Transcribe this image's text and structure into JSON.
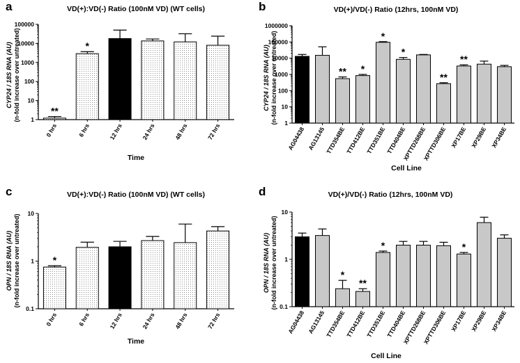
{
  "figure": {
    "width": 746,
    "height": 522
  },
  "chart_data": [
    {
      "type": "bar",
      "panel_letter": "a",
      "title": "VD(+):VD(-) Ratio (100nM VD) (WT cells)",
      "ylabel_line1": "CYP24 / 18S RNA (AU)",
      "ylabel_line2": "(n-fold increase over untreated)",
      "xlabel": "Time",
      "yscale": "log",
      "ylim": [
        1,
        100000
      ],
      "yticks": [
        1,
        10,
        100,
        1000,
        10000,
        100000
      ],
      "ytick_labels": [
        "1",
        "10",
        "100",
        "1000",
        "10000",
        "100000"
      ],
      "categories": [
        "0 hrs",
        "6 hrs",
        "12 hrs",
        "24 hrs",
        "48 hrs",
        "72 hrs"
      ],
      "values": [
        1.2,
        2900,
        18000,
        13500,
        12000,
        8000
      ],
      "errors": [
        1.45,
        3700,
        50000,
        17000,
        32000,
        24000
      ],
      "fills": [
        "dots",
        "dots",
        "black",
        "dots",
        "dots",
        "dots"
      ],
      "annotations": [
        "**",
        "*",
        "",
        "",
        "",
        ""
      ]
    },
    {
      "type": "bar",
      "panel_letter": "b",
      "title": "VD(+)/VD(-) Ratio (12hrs, 100nM VD)",
      "ylabel_line1": "CYP24 / 18S RNA (AU)",
      "ylabel_line2": "(n-fold increase over untreated)",
      "xlabel": "Cell Line",
      "yscale": "log",
      "ylim": [
        1,
        1000000
      ],
      "yticks": [
        1,
        10,
        100,
        1000,
        10000,
        100000,
        1000000
      ],
      "ytick_labels": [
        "1",
        "10",
        "100",
        "1000",
        "10000",
        "100000",
        "1000000"
      ],
      "categories": [
        "AG04438",
        "AG13145",
        "TTD354BE",
        "TTD412BE",
        "TTD351BE",
        "TTD404BE",
        "XPTTD268BE",
        "XPTTD306BE",
        "XP17BE",
        "XP29BE",
        "XP34BE"
      ],
      "values": [
        13000,
        15000,
        550,
        850,
        95000,
        8500,
        16000,
        270,
        3300,
        4300,
        3000
      ],
      "errors": [
        17000,
        50000,
        700,
        1000,
        105000,
        11000,
        17000,
        310,
        3900,
        6600,
        3600
      ],
      "fills": [
        "black",
        "gray",
        "gray",
        "gray",
        "gray",
        "gray",
        "gray",
        "gray",
        "gray",
        "gray",
        "gray"
      ],
      "annotations": [
        "",
        "",
        "**",
        "*",
        "*",
        "*",
        "",
        "**",
        "**",
        "",
        ""
      ]
    },
    {
      "type": "bar",
      "panel_letter": "c",
      "title": "VD(+):VD(-) Ratio (100nM VD) (WT cells)",
      "ylabel_line1": "OPN / 18S RNA (AU)",
      "ylabel_line2": "(n-fold increase over untreated)",
      "xlabel": "Time",
      "yscale": "log",
      "ylim": [
        0.1,
        10
      ],
      "yticks": [
        0.1,
        1,
        10
      ],
      "ytick_labels": [
        "0.1",
        "1",
        "10"
      ],
      "categories": [
        "0 hrs",
        "6 hrs",
        "12 hrs",
        "24 hrs",
        "48 hrs",
        "72 hrs"
      ],
      "values": [
        0.75,
        1.95,
        2.0,
        2.7,
        2.45,
        4.3
      ],
      "errors": [
        0.8,
        2.5,
        2.6,
        3.3,
        6.0,
        5.3
      ],
      "fills": [
        "dots",
        "dots",
        "black",
        "dots",
        "dots",
        "dots"
      ],
      "annotations": [
        "*",
        "",
        "",
        "",
        "",
        ""
      ]
    },
    {
      "type": "bar",
      "panel_letter": "d",
      "title": "VD(+)/VD(-) Ratio (12hrs, 100nM VD)",
      "ylabel_line1": "OPN / 18S RNA (AU)",
      "ylabel_line2": "(n-fold increase over untreated)",
      "xlabel": "Cell Line",
      "yscale": "log",
      "ylim": [
        0.1,
        10
      ],
      "yticks": [
        0.1,
        1,
        10
      ],
      "ytick_labels": [
        "0.1",
        "1",
        "10"
      ],
      "categories": [
        "AG04438",
        "AG13145",
        "TTD354BE",
        "TTD412BE",
        "TTD351BE",
        "TTD404BE",
        "XPTTD268BE",
        "XPTTD306BE",
        "XP17BE",
        "XP29BE",
        "XP34BE"
      ],
      "values": [
        3.0,
        3.2,
        0.24,
        0.21,
        1.4,
        2.0,
        2.0,
        1.95,
        1.3,
        6.0,
        2.8
      ],
      "errors": [
        3.6,
        4.4,
        0.36,
        0.24,
        1.5,
        2.4,
        2.4,
        2.3,
        1.4,
        7.8,
        3.3
      ],
      "fills": [
        "black",
        "gray",
        "gray",
        "gray",
        "gray",
        "gray",
        "gray",
        "gray",
        "gray",
        "gray",
        "gray"
      ],
      "annotations": [
        "",
        "",
        "*",
        "**",
        "*",
        "",
        "",
        "",
        "*",
        "",
        ""
      ]
    }
  ]
}
